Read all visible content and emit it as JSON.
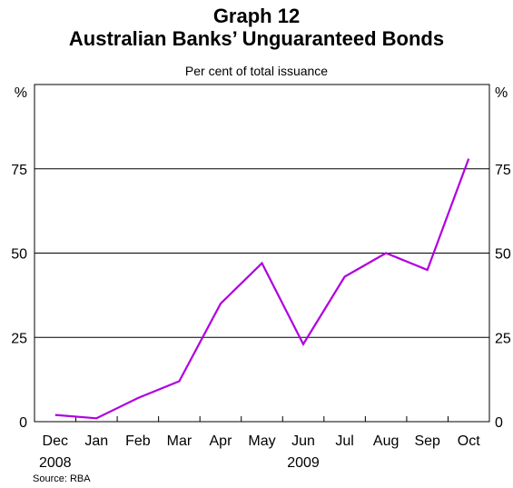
{
  "header": {
    "title": "Graph 12",
    "subtitle": "Australian Banks’ Unguaranteed Bonds",
    "caption": "Per cent of total issuance"
  },
  "footer": {
    "source": "Source: RBA"
  },
  "chart_data": {
    "type": "line",
    "categories": [
      "Dec",
      "Jan",
      "Feb",
      "Mar",
      "Apr",
      "May",
      "Jun",
      "Jul",
      "Aug",
      "Sep",
      "Oct"
    ],
    "year_labels": [
      {
        "label": "2008",
        "category_index": 0
      },
      {
        "label": "2009",
        "category_index": 6
      }
    ],
    "series": [
      {
        "values": [
          2,
          1,
          7,
          12,
          35,
          47,
          23,
          43,
          50,
          45,
          78
        ],
        "color": "#b000e0"
      }
    ],
    "ylim": [
      0,
      100
    ],
    "yticks": [
      0,
      25,
      50,
      75
    ],
    "y_unit_left": "%",
    "y_unit_right": "%",
    "grid": true,
    "legend": "none"
  }
}
